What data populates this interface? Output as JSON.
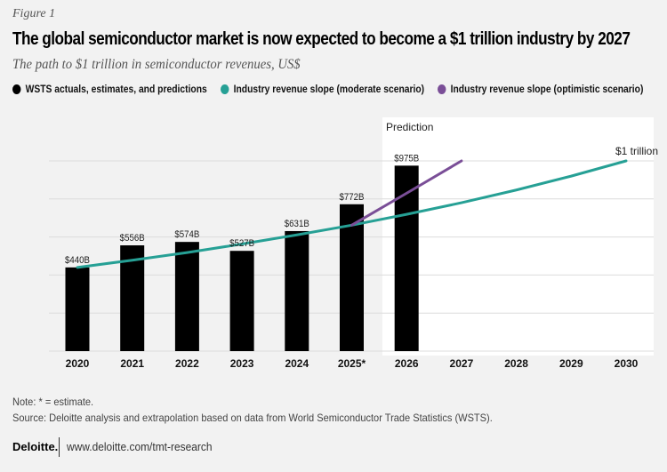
{
  "figure_label": "Figure 1",
  "title": "The global semiconductor market is now expected to become a $1 trillion industry by 2027",
  "subtitle": "The path to $1 trillion in semiconductor revenues, US$",
  "legend": [
    {
      "label": "WSTS actuals, estimates, and predictions",
      "color": "#000000"
    },
    {
      "label": "Industry revenue slope (moderate scenario)",
      "color": "#26a095"
    },
    {
      "label": "Industry revenue slope (optimistic scenario)",
      "color": "#7a4e97"
    }
  ],
  "chart_data": {
    "type": "bar",
    "categories": [
      "2020",
      "2021",
      "2022",
      "2023",
      "2024",
      "2025*",
      "2026",
      "2027",
      "2028",
      "2029",
      "2030"
    ],
    "bars": {
      "name": "WSTS actuals, estimates, and predictions",
      "values": [
        440,
        556,
        574,
        527,
        631,
        772,
        975,
        null,
        null,
        null,
        null
      ],
      "labels": [
        "$440B",
        "$556B",
        "$574B",
        "$527B",
        "$631B",
        "$772B",
        "$975B",
        "",
        "",
        "",
        ""
      ],
      "color": "#000000"
    },
    "series": [
      {
        "name": "Industry revenue slope (moderate scenario)",
        "type": "line",
        "color": "#26a095",
        "values": [
          440,
          478,
          518,
          563,
          611,
          662,
          719,
          780,
          847,
          920,
          1000
        ]
      },
      {
        "name": "Industry revenue slope (optimistic scenario)",
        "type": "line",
        "color": "#7a4e97",
        "values": [
          null,
          null,
          null,
          null,
          null,
          662,
          830,
          1000,
          null,
          null,
          null
        ]
      }
    ],
    "annotations": {
      "prediction_region_label": "Prediction",
      "prediction_region_start": "2026",
      "end_label": "$1 trillion"
    },
    "ylim": [
      0,
      1000
    ],
    "y_gridlines": [
      0,
      200,
      400,
      600,
      800,
      1000
    ],
    "y_tick_labels_shown": false,
    "grid": true,
    "xlabel": "",
    "ylabel": ""
  },
  "footer": {
    "note": "Note: * = estimate.",
    "source": "Source: Deloitte analysis and extrapolation based on data from World Semiconductor Trade Statistics (WSTS).",
    "brand": "Deloitte.",
    "url": "www.deloitte.com/tmt-research"
  }
}
